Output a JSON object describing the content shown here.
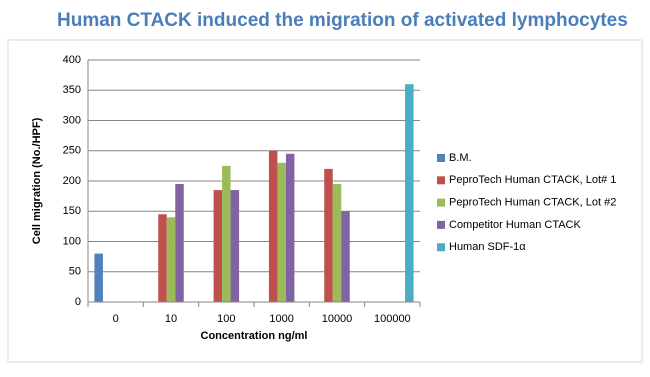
{
  "chart_data": {
    "type": "bar",
    "title": "Human CTACK induced the migration of activated lymphocytes",
    "x_label": "Concentration ng/ml",
    "y_label": "Cell migration (No./HPF)",
    "categories": [
      "0",
      "10",
      "100",
      "1000",
      "10000",
      "100000"
    ],
    "series": [
      {
        "name": "B.M.",
        "color": "#4f81bd",
        "values": [
          80,
          null,
          null,
          null,
          null,
          null
        ]
      },
      {
        "name": "PeproTech Human CTACK, Lot# 1",
        "color": "#c0504d",
        "values": [
          null,
          145,
          185,
          250,
          220,
          null
        ]
      },
      {
        "name": "PeproTech Human CTACK, Lot #2",
        "color": "#9bbb59",
        "values": [
          null,
          140,
          225,
          230,
          195,
          null
        ]
      },
      {
        "name": "Competitor Human CTACK",
        "color": "#8064a2",
        "values": [
          null,
          195,
          185,
          245,
          150,
          null
        ]
      },
      {
        "name": "Human SDF-1α",
        "color": "#4bacc6",
        "values": [
          null,
          null,
          null,
          null,
          null,
          360
        ]
      }
    ],
    "ylim": [
      0,
      400
    ],
    "yticks": [
      0,
      50,
      100,
      150,
      200,
      250,
      300,
      350,
      400
    ],
    "grid": true,
    "legend": "right"
  }
}
